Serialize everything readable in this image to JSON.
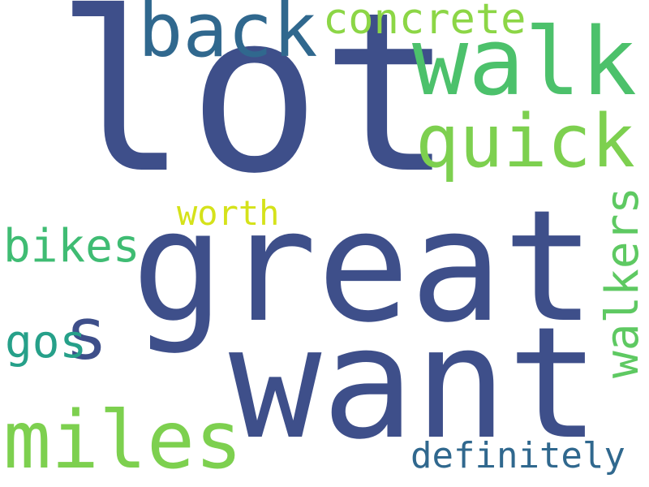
{
  "colors": {
    "background": "#ffffff",
    "navy": "#3e4f8a",
    "slate_blue": "#30688e",
    "teal": "#26a089",
    "green": "#4cc16b",
    "light_green": "#7dd04f",
    "lime": "#d5e21a"
  },
  "words": {
    "lot": {
      "text": "lot",
      "color": "#3e4f8a"
    },
    "great": {
      "text": "great",
      "color": "#3e4f8a"
    },
    "want": {
      "text": "want",
      "color": "#3e4f8a"
    },
    "walk": {
      "text": "walk",
      "color": "#4cc16b"
    },
    "back": {
      "text": "back",
      "color": "#30688e"
    },
    "quick": {
      "text": "quick",
      "color": "#7dd04f"
    },
    "miles": {
      "text": "miles",
      "color": "#7dd04f"
    },
    "concrete": {
      "text": "concrete",
      "color": "#8cd646"
    },
    "s": {
      "text": "s",
      "color": "#3e4f8a"
    },
    "bikes": {
      "text": "bikes",
      "color": "#3fbc73"
    },
    "walkers": {
      "text": "walkers",
      "color": "#5ec962"
    },
    "worth": {
      "text": "worth",
      "color": "#d5e21a"
    },
    "gos": {
      "text": "gos",
      "color": "#26a089"
    },
    "definitely": {
      "text": "definitely",
      "color": "#30688e"
    }
  }
}
